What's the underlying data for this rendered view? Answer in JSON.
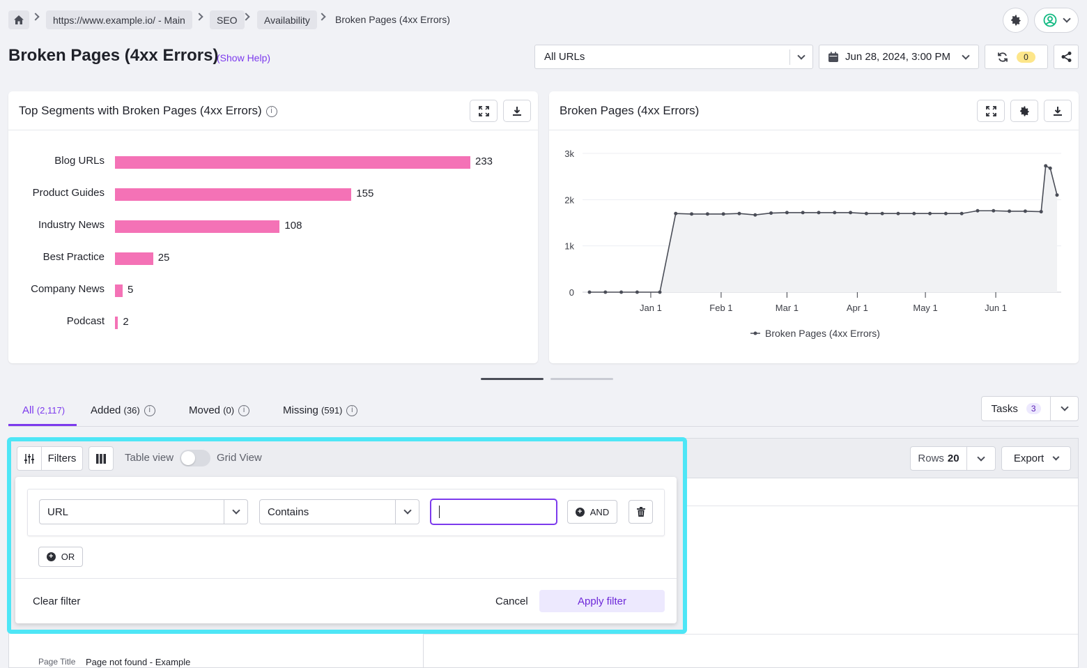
{
  "breadcrumb": {
    "items": [
      "https://www.example.io/ - Main",
      "SEO",
      "Availability"
    ],
    "current": "Broken Pages (4xx Errors)"
  },
  "header": {
    "title": "Broken Pages (4xx Errors)",
    "help_link": "(Show Help)",
    "url_select": "All URLs",
    "date": "Jun 28, 2024, 3:00 PM",
    "refresh_count": "0"
  },
  "segments_card": {
    "title": "Top Segments with Broken Pages (4xx Errors)"
  },
  "trend_card": {
    "title": "Broken Pages (4xx Errors)"
  },
  "chart_data": [
    {
      "type": "bar",
      "orientation": "horizontal",
      "title": "Top Segments with Broken Pages (4xx Errors)",
      "categories": [
        "Blog URLs",
        "Product Guides",
        "Industry News",
        "Best Practice",
        "Company News",
        "Podcast"
      ],
      "values": [
        233,
        155,
        108,
        25,
        5,
        2
      ],
      "color": "#f472b6"
    },
    {
      "type": "line",
      "title": "Broken Pages (4xx Errors)",
      "x_ticks": [
        "Jan 1",
        "Feb 1",
        "Mar 1",
        "Apr 1",
        "May 1",
        "Jun 1"
      ],
      "y_ticks": [
        "0",
        "1k",
        "2k",
        "3k"
      ],
      "ylim": [
        0,
        3000
      ],
      "series": [
        {
          "name": "Broken Pages (4xx Errors)",
          "x": [
            "2023-12-05",
            "2023-12-12",
            "2023-12-19",
            "2023-12-26",
            "2024-01-05",
            "2024-01-12",
            "2024-01-19",
            "2024-01-26",
            "2024-02-02",
            "2024-02-09",
            "2024-02-16",
            "2024-02-23",
            "2024-03-01",
            "2024-03-08",
            "2024-03-15",
            "2024-03-22",
            "2024-03-29",
            "2024-04-05",
            "2024-04-12",
            "2024-04-19",
            "2024-04-26",
            "2024-05-03",
            "2024-05-10",
            "2024-05-17",
            "2024-05-24",
            "2024-05-31",
            "2024-06-07",
            "2024-06-14",
            "2024-06-21",
            "2024-06-23",
            "2024-06-25",
            "2024-06-28"
          ],
          "values": [
            0,
            0,
            0,
            0,
            0,
            1700,
            1690,
            1690,
            1690,
            1700,
            1670,
            1710,
            1720,
            1720,
            1720,
            1720,
            1720,
            1700,
            1700,
            1700,
            1700,
            1700,
            1700,
            1700,
            1760,
            1760,
            1750,
            1750,
            1740,
            2730,
            2680,
            2100
          ]
        }
      ],
      "legend": "bottom-center",
      "color": "#4a4d57",
      "fill": "#f1f2f4"
    }
  ],
  "tabs": [
    {
      "label": "All",
      "count": "(2,117)",
      "active": true
    },
    {
      "label": "Added",
      "count": "(36)"
    },
    {
      "label": "Moved",
      "count": "(0)"
    },
    {
      "label": "Missing",
      "count": "(591)"
    }
  ],
  "tasks": {
    "label": "Tasks",
    "count": "3"
  },
  "toolbar": {
    "filters_label": "Filters",
    "table_view": "Table view",
    "grid_view": "Grid View",
    "rows_label": "Rows",
    "rows_value": "20",
    "export_label": "Export"
  },
  "filter_panel": {
    "field": "URL",
    "operator": "Contains",
    "value": "",
    "and_label": "AND",
    "or_label": "OR",
    "clear_label": "Clear filter",
    "cancel_label": "Cancel",
    "apply_label": "Apply filter"
  },
  "table_peek": {
    "label": "Page Title",
    "value": "Page not found - Example"
  },
  "colors": {
    "accent": "#7c3aed",
    "highlight": "#4ee6f6",
    "bar": "#f472b6",
    "badge_yellow": "#fde68a"
  }
}
